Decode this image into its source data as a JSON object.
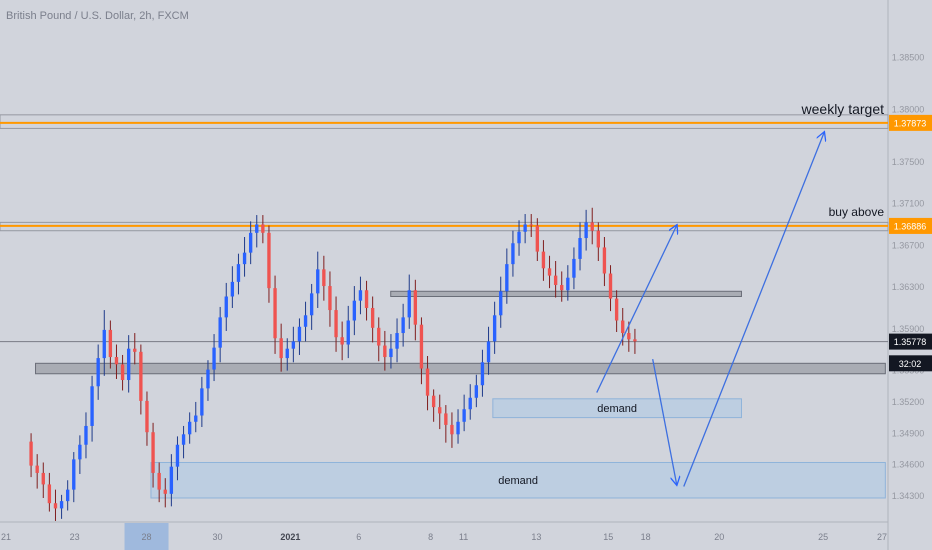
{
  "header": {
    "symbol_title": "British Pound / U.S. Dollar, 2h, FXCM"
  },
  "chart_data": {
    "type": "candlestick",
    "ylim": [
      1.3405,
      1.3905
    ],
    "y_ticks": [
      "1.38500",
      "1.38000",
      "1.37500",
      "1.37100",
      "1.36700",
      "1.36300",
      "1.35900",
      "1.35500",
      "1.35200",
      "1.34900",
      "1.34600",
      "1.34300"
    ],
    "y_tick_values": [
      1.385,
      1.38,
      1.375,
      1.371,
      1.367,
      1.363,
      1.359,
      1.355,
      1.352,
      1.349,
      1.346,
      1.343
    ],
    "x_ticks": [
      "21",
      "23",
      "28",
      "30",
      "2021",
      "6",
      "8",
      "11",
      "13",
      "15",
      "18",
      "20",
      "25",
      "27"
    ],
    "x_tick_positions": [
      0.0,
      0.084,
      0.165,
      0.245,
      0.327,
      0.404,
      0.485,
      0.522,
      0.604,
      0.685,
      0.727,
      0.81,
      0.927,
      1.0
    ],
    "highlighted_x_tick": "28",
    "price_labels": [
      {
        "value": "1.37873",
        "price": 1.37873,
        "color": "#ff9800"
      },
      {
        "value": "1.36886",
        "price": 1.36886,
        "color": "#ff9800"
      },
      {
        "value": "1.35778",
        "price": 1.35778,
        "color": "#131722"
      },
      {
        "value": "32:02",
        "price": 1.3557,
        "color": "#131722"
      }
    ],
    "horizontal_lines": [
      {
        "price": 1.37873,
        "color": "#ff9800"
      },
      {
        "price": 1.36886,
        "color": "#ff9800"
      },
      {
        "price": 1.35778,
        "color": "#787b86"
      }
    ],
    "zones": [
      {
        "label": "",
        "kind": "resistance",
        "top": 1.3795,
        "bottom": 1.3782
      },
      {
        "label": "",
        "kind": "resistance",
        "top": 1.3692,
        "bottom": 1.3684
      },
      {
        "label": "",
        "kind": "gray",
        "top": 1.3626,
        "bottom": 1.3621
      },
      {
        "label": "",
        "kind": "gray",
        "top": 1.3557,
        "bottom": 1.3547
      },
      {
        "label": "demand",
        "kind": "demand",
        "top": 1.3523,
        "bottom": 1.3505
      },
      {
        "label": "demand",
        "kind": "demand",
        "top": 1.3462,
        "bottom": 1.3428
      }
    ],
    "annotations": [
      {
        "text": "weekly target",
        "price": 1.3796
      },
      {
        "text": "buy above",
        "price": 1.3698
      }
    ],
    "projection_arrows": [
      [
        [
          0.672,
          1.3529
        ],
        [
          0.762,
          1.3689
        ]
      ],
      [
        [
          0.735,
          1.3561
        ],
        [
          0.762,
          1.3441
        ]
      ],
      [
        [
          0.77,
          1.3439
        ],
        [
          0.928,
          1.3778
        ]
      ]
    ],
    "series": [
      {
        "open": [
          1.3482,
          1.3459,
          1.3452,
          1.3441,
          1.3423,
          1.3418,
          1.3425,
          1.3436,
          1.3465,
          1.3479,
          1.3497,
          1.3535,
          1.3562,
          1.3589,
          1.3563,
          1.3556,
          1.3541,
          1.3571,
          1.3568,
          1.3521,
          1.3491,
          1.3452,
          1.3436,
          1.3432,
          1.3458,
          1.3479,
          1.3489,
          1.3501,
          1.3507,
          1.3533,
          1.3551,
          1.3572,
          1.3601,
          1.3621,
          1.3635,
          1.3652,
          1.3663,
          1.3682,
          1.369,
          1.3682,
          1.3629,
          1.3581,
          1.3562,
          1.3571,
          1.3578,
          1.3592,
          1.3603,
          1.3624,
          1.3647,
          1.3631,
          1.3608,
          1.3582,
          1.3575,
          1.3598,
          1.3617,
          1.3627,
          1.361,
          1.3591,
          1.3574,
          1.3563,
          1.3571,
          1.3586,
          1.3601,
          1.3627,
          1.3594,
          1.3552,
          1.3526,
          1.3515,
          1.3509,
          1.3498,
          1.3489,
          1.3501,
          1.3513,
          1.3524,
          1.3536,
          1.3558,
          1.3578,
          1.3603,
          1.3626,
          1.3652,
          1.3672,
          1.3683,
          1.369,
          1.3689,
          1.3664,
          1.3648,
          1.3641,
          1.3632,
          1.3627,
          1.3639,
          1.3657,
          1.3677,
          1.3692,
          1.3684,
          1.3668,
          1.3643,
          1.3619,
          1.3598,
          1.3586,
          1.358
        ],
        "close": [
          1.3459,
          1.3452,
          1.3441,
          1.3423,
          1.3418,
          1.3425,
          1.3436,
          1.3465,
          1.3479,
          1.3497,
          1.3535,
          1.3562,
          1.3589,
          1.3563,
          1.3556,
          1.3541,
          1.3571,
          1.3568,
          1.3521,
          1.3491,
          1.3452,
          1.3436,
          1.3432,
          1.3458,
          1.3479,
          1.3489,
          1.3501,
          1.3507,
          1.3533,
          1.3551,
          1.3572,
          1.3601,
          1.3621,
          1.3635,
          1.3652,
          1.3663,
          1.3682,
          1.369,
          1.3682,
          1.3629,
          1.3581,
          1.3562,
          1.3571,
          1.3578,
          1.3592,
          1.3603,
          1.3624,
          1.3647,
          1.3631,
          1.3608,
          1.3582,
          1.3575,
          1.3598,
          1.3617,
          1.3627,
          1.361,
          1.3591,
          1.3574,
          1.3563,
          1.3571,
          1.3586,
          1.3601,
          1.3627,
          1.3594,
          1.3552,
          1.3526,
          1.3515,
          1.3509,
          1.3498,
          1.3489,
          1.3501,
          1.3513,
          1.3524,
          1.3536,
          1.3558,
          1.3578,
          1.3603,
          1.3626,
          1.3652,
          1.3672,
          1.3683,
          1.369,
          1.3689,
          1.3664,
          1.3648,
          1.3641,
          1.3632,
          1.3627,
          1.3639,
          1.3657,
          1.3677,
          1.3692,
          1.3684,
          1.3668,
          1.3643,
          1.3619,
          1.3598,
          1.3586,
          1.358,
          1.3578
        ],
        "high": [
          1.349,
          1.347,
          1.3462,
          1.3452,
          1.3436,
          1.3431,
          1.3445,
          1.3472,
          1.3488,
          1.351,
          1.3545,
          1.3575,
          1.3608,
          1.3598,
          1.3575,
          1.3565,
          1.3584,
          1.3586,
          1.3575,
          1.353,
          1.35,
          1.3462,
          1.3447,
          1.347,
          1.3487,
          1.3497,
          1.351,
          1.352,
          1.3544,
          1.356,
          1.3585,
          1.3611,
          1.3634,
          1.365,
          1.3662,
          1.3678,
          1.3693,
          1.3699,
          1.3699,
          1.3689,
          1.3641,
          1.3595,
          1.3581,
          1.3592,
          1.36,
          1.3616,
          1.3633,
          1.3664,
          1.366,
          1.3645,
          1.3621,
          1.3597,
          1.3612,
          1.3631,
          1.364,
          1.3636,
          1.3621,
          1.3601,
          1.3588,
          1.3585,
          1.36,
          1.3614,
          1.3642,
          1.3637,
          1.3601,
          1.3564,
          1.3532,
          1.3527,
          1.3517,
          1.351,
          1.3513,
          1.3527,
          1.3537,
          1.3546,
          1.357,
          1.3592,
          1.3616,
          1.364,
          1.3667,
          1.3684,
          1.3694,
          1.37,
          1.37,
          1.3696,
          1.3675,
          1.366,
          1.3655,
          1.3645,
          1.3651,
          1.3668,
          1.3692,
          1.3704,
          1.3706,
          1.3692,
          1.3678,
          1.3651,
          1.3627,
          1.361,
          1.3597,
          1.359
        ],
        "low": [
          1.3448,
          1.3437,
          1.3428,
          1.3415,
          1.3406,
          1.3408,
          1.3416,
          1.3424,
          1.3451,
          1.3466,
          1.3482,
          1.3522,
          1.3545,
          1.3552,
          1.3542,
          1.3531,
          1.3529,
          1.3556,
          1.3508,
          1.3478,
          1.3438,
          1.3424,
          1.3419,
          1.342,
          1.3445,
          1.3466,
          1.348,
          1.3491,
          1.3496,
          1.3521,
          1.354,
          1.3558,
          1.3588,
          1.361,
          1.3623,
          1.364,
          1.3652,
          1.3668,
          1.3672,
          1.3615,
          1.3566,
          1.3549,
          1.355,
          1.3558,
          1.3565,
          1.3578,
          1.3589,
          1.361,
          1.3617,
          1.3592,
          1.3568,
          1.356,
          1.3562,
          1.3584,
          1.3604,
          1.3598,
          1.3577,
          1.3559,
          1.355,
          1.3552,
          1.3558,
          1.3573,
          1.359,
          1.3579,
          1.3537,
          1.3512,
          1.3501,
          1.3494,
          1.3481,
          1.3476,
          1.348,
          1.3492,
          1.3503,
          1.3515,
          1.3525,
          1.3546,
          1.3566,
          1.3591,
          1.3614,
          1.364,
          1.366,
          1.3672,
          1.3678,
          1.3655,
          1.3636,
          1.3629,
          1.362,
          1.3616,
          1.3617,
          1.3628,
          1.3646,
          1.3665,
          1.3671,
          1.3655,
          1.3631,
          1.3607,
          1.3587,
          1.3574,
          1.3568,
          1.3566
        ]
      }
    ]
  }
}
